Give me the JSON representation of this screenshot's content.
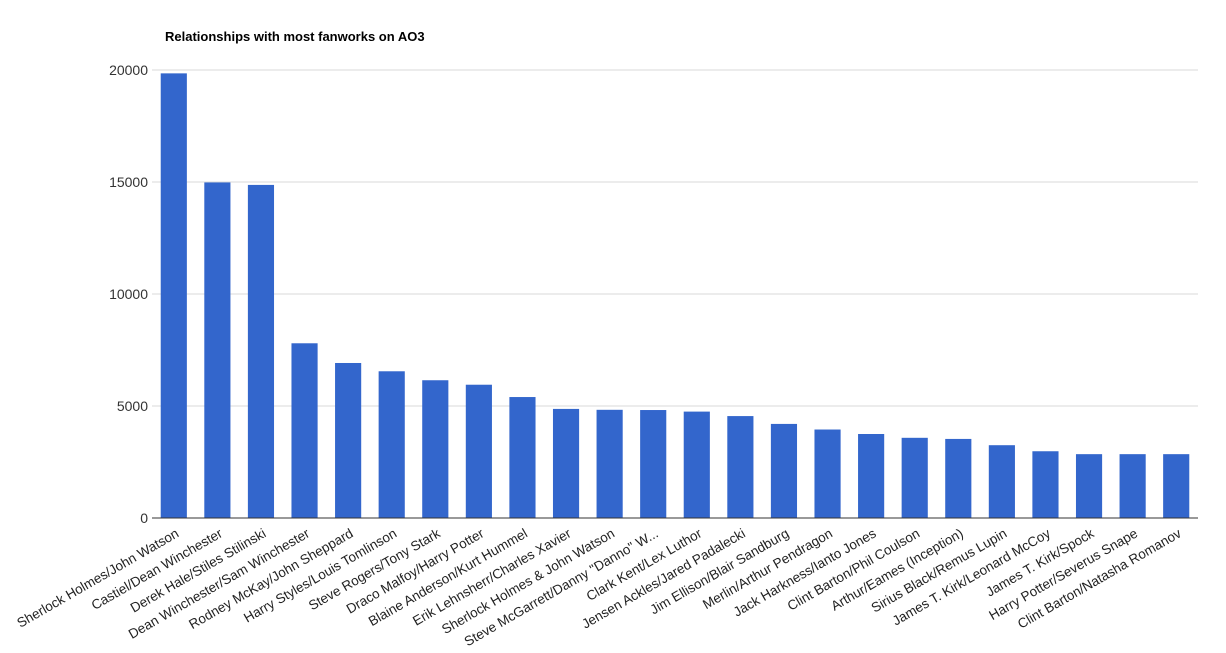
{
  "chart_data": {
    "type": "bar",
    "title": "Relationships with most fanworks on AO3",
    "xlabel": "",
    "ylabel": "",
    "ylim": [
      0,
      20000
    ],
    "yticks": [
      "0",
      "5000",
      "10000",
      "15000",
      "20000"
    ],
    "grid": true,
    "legend": "none",
    "bar_color": "#3366cc",
    "categories": [
      "Sherlock Holmes/John Watson",
      "Castiel/Dean Winchester",
      "Derek Hale/Stiles Stilinski",
      "Dean Winchester/Sam Winchester",
      "Rodney McKay/John Sheppard",
      "Harry Styles/Louis Tomlinson",
      "Steve Rogers/Tony Stark",
      "Draco Malfoy/Harry Potter",
      "Blaine Anderson/Kurt Hummel",
      "Erik Lehnsherr/Charles Xavier",
      "Sherlock Holmes & John Watson",
      "Steve McGarrett/Danny \"Danno\" W...",
      "Clark Kent/Lex Luthor",
      "Jensen Ackles/Jared Padalecki",
      "Jim Ellison/Blair Sandburg",
      "Merlin/Arthur Pendragon",
      "Jack Harkness/Ianto Jones",
      "Clint Barton/Phil Coulson",
      "Arthur/Eames (Inception)",
      "Sirius Black/Remus Lupin",
      "James T. Kirk/Leonard McCoy",
      "James T. Kirk/Spock",
      "Harry Potter/Severus Snape",
      "Clint Barton/Natasha Romanov"
    ],
    "values": [
      19850,
      14980,
      14870,
      7800,
      6920,
      6550,
      6150,
      5950,
      5400,
      4870,
      4830,
      4820,
      4750,
      4550,
      4200,
      3950,
      3750,
      3580,
      3530,
      3250,
      2980,
      2850,
      2850,
      2850
    ]
  }
}
